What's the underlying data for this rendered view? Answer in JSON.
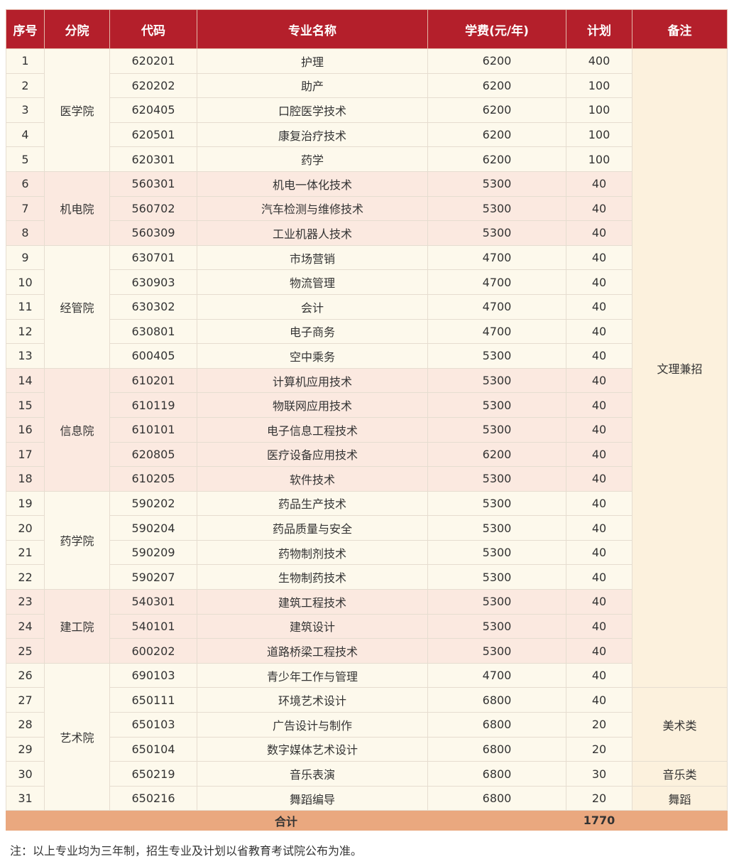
{
  "header": [
    "序号",
    "分院",
    "代码",
    "专业名称",
    "学费(元/年)",
    "计划",
    "备注"
  ],
  "colleges": [
    {
      "name": "医学院",
      "rows": 5
    },
    {
      "name": "机电院",
      "rows": 3
    },
    {
      "name": "经管院",
      "rows": 5
    },
    {
      "name": "信息院",
      "rows": 5
    },
    {
      "name": "药学院",
      "rows": 4
    },
    {
      "name": "建工院",
      "rows": 3
    },
    {
      "name": "艺术院",
      "rows": 6
    }
  ],
  "remarks": [
    {
      "text": "文理兼招",
      "rows": 26
    },
    {
      "text": "美术类",
      "rows": 3
    },
    {
      "text": "音乐类",
      "rows": 1
    },
    {
      "text": "舞蹈",
      "rows": 1
    }
  ],
  "rows": [
    [
      "1",
      "620201",
      "护理",
      "6200",
      "400"
    ],
    [
      "2",
      "620202",
      "助产",
      "6200",
      "100"
    ],
    [
      "3",
      "620405",
      "口腔医学技术",
      "6200",
      "100"
    ],
    [
      "4",
      "620501",
      "康复治疗技术",
      "6200",
      "100"
    ],
    [
      "5",
      "620301",
      "药学",
      "6200",
      "100"
    ],
    [
      "6",
      "560301",
      "机电一体化技术",
      "5300",
      "40"
    ],
    [
      "7",
      "560702",
      "汽车检测与维修技术",
      "5300",
      "40"
    ],
    [
      "8",
      "560309",
      "工业机器人技术",
      "5300",
      "40"
    ],
    [
      "9",
      "630701",
      "市场营销",
      "4700",
      "40"
    ],
    [
      "10",
      "630903",
      "物流管理",
      "4700",
      "40"
    ],
    [
      "11",
      "630302",
      "会计",
      "4700",
      "40"
    ],
    [
      "12",
      "630801",
      "电子商务",
      "4700",
      "40"
    ],
    [
      "13",
      "600405",
      "空中乘务",
      "5300",
      "40"
    ],
    [
      "14",
      "610201",
      "计算机应用技术",
      "5300",
      "40"
    ],
    [
      "15",
      "610119",
      "物联网应用技术",
      "5300",
      "40"
    ],
    [
      "16",
      "610101",
      "电子信息工程技术",
      "5300",
      "40"
    ],
    [
      "17",
      "620805",
      "医疗设备应用技术",
      "6200",
      "40"
    ],
    [
      "18",
      "610205",
      "软件技术",
      "5300",
      "40"
    ],
    [
      "19",
      "590202",
      "药品生产技术",
      "5300",
      "40"
    ],
    [
      "20",
      "590204",
      "药品质量与安全",
      "5300",
      "40"
    ],
    [
      "21",
      "590209",
      "药物制剂技术",
      "5300",
      "40"
    ],
    [
      "22",
      "590207",
      "生物制药技术",
      "5300",
      "40"
    ],
    [
      "23",
      "540301",
      "建筑工程技术",
      "5300",
      "40"
    ],
    [
      "24",
      "540101",
      "建筑设计",
      "5300",
      "40"
    ],
    [
      "25",
      "600202",
      "道路桥梁工程技术",
      "5300",
      "40"
    ],
    [
      "26",
      "690103",
      "青少年工作与管理",
      "4700",
      "40"
    ],
    [
      "27",
      "650111",
      "环境艺术设计",
      "6800",
      "40"
    ],
    [
      "28",
      "650103",
      "广告设计与制作",
      "6800",
      "20"
    ],
    [
      "29",
      "650104",
      "数字媒体艺术设计",
      "6800",
      "20"
    ],
    [
      "30",
      "650219",
      "音乐表演",
      "6800",
      "30"
    ],
    [
      "31",
      "650216",
      "舞蹈编导",
      "6800",
      "20"
    ]
  ],
  "total": {
    "label": "合计",
    "plan": "1770"
  },
  "note": "注：以上专业均为三年制，招生专业及计划以省教育考试院公布为准。",
  "colors": {
    "header": "#b41f2b",
    "group_a": "#fdf9ec",
    "group_b": "#fbe9e0",
    "remark": "#fcf1dd",
    "total": "#eaa87f"
  }
}
